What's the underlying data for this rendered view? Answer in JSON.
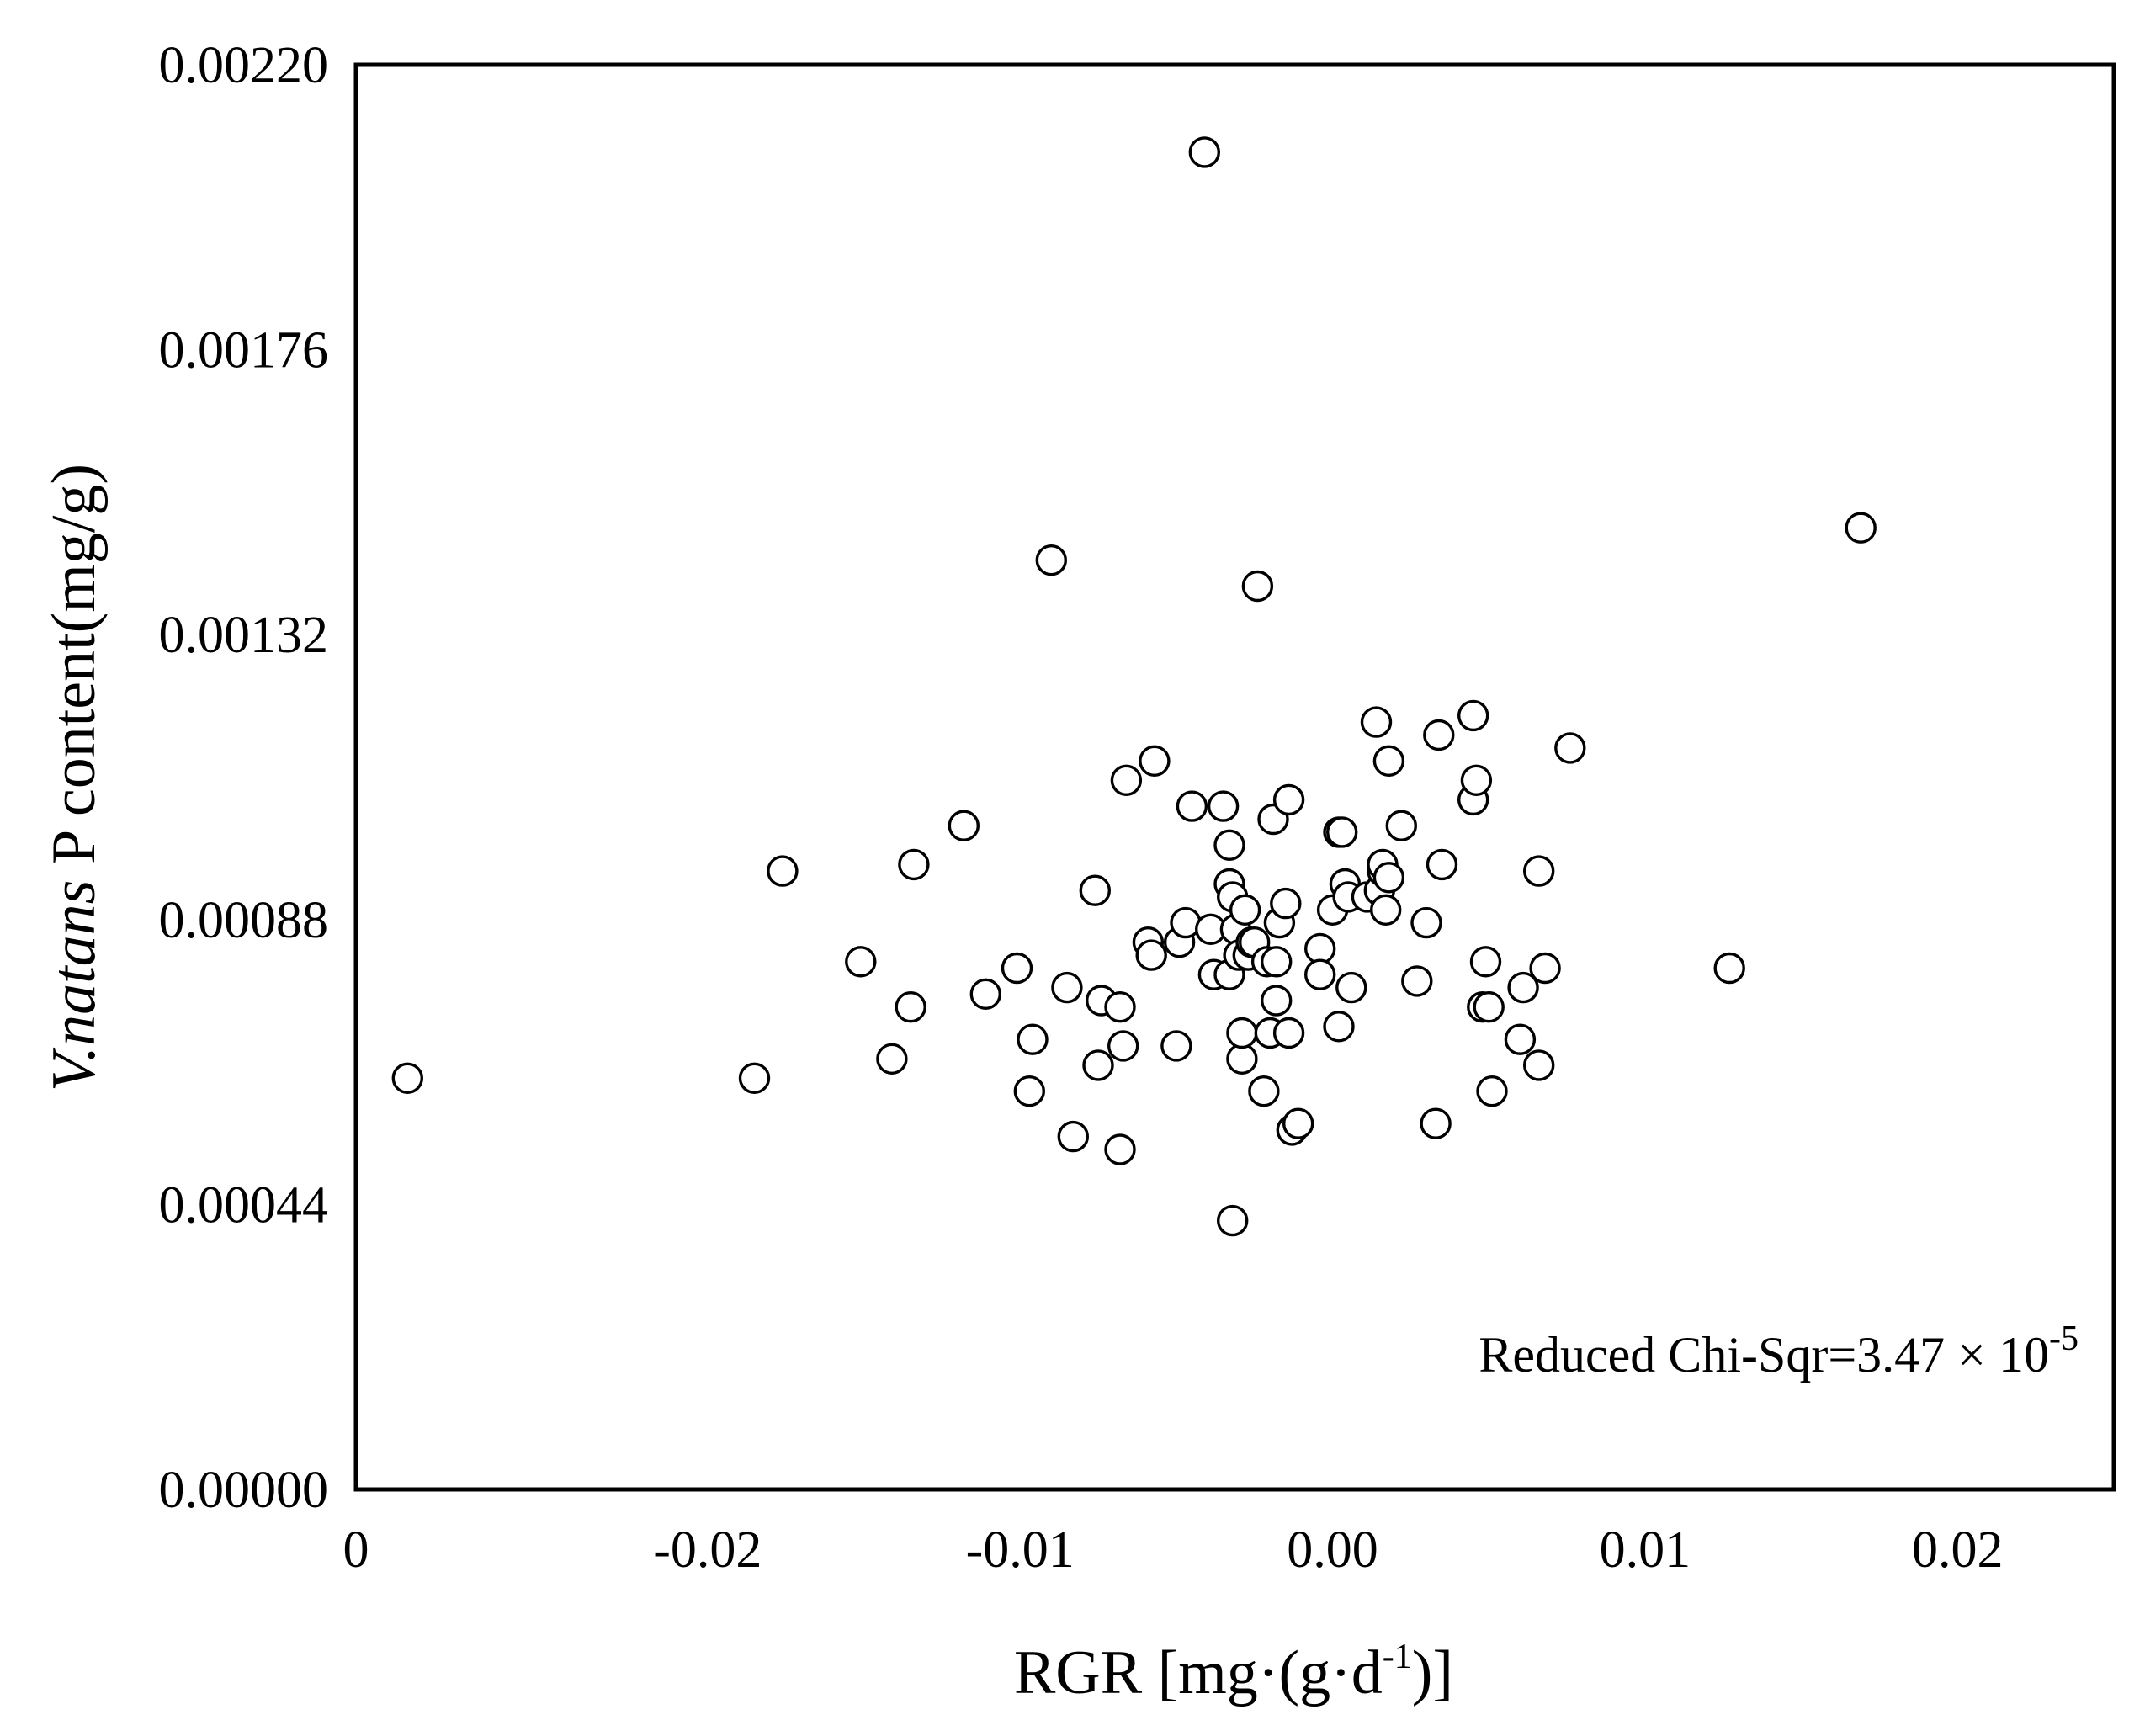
{
  "colors": {
    "background": "#ffffff",
    "ink": "#000000",
    "marker_fill": "#ffffff"
  },
  "chart_data": {
    "type": "scatter",
    "title": "",
    "xlabel": "RGR [mg·(g·d-1)]",
    "xlabel_parts": {
      "main": "RGR [mg·(g·d",
      "superscript": "-1",
      "tail": ")]"
    },
    "ylabel": "V.natans P content(mg/g)",
    "ylabel_parts": {
      "italic": "V.natans",
      "rest": " P content(mg/g)"
    },
    "xlim": [
      -0.03125,
      0.025
    ],
    "ylim": [
      0,
      0.0022
    ],
    "x_ticks": [
      {
        "value": -0.03125,
        "label": "0"
      },
      {
        "value": -0.02,
        "label": "-0.02"
      },
      {
        "value": -0.01,
        "label": "-0.01"
      },
      {
        "value": 0.0,
        "label": "0.00"
      },
      {
        "value": 0.01,
        "label": "0.01"
      },
      {
        "value": 0.02,
        "label": "0.02"
      }
    ],
    "y_ticks": [
      {
        "value": 0.0,
        "label": "0.00000"
      },
      {
        "value": 0.00044,
        "label": "0.00044"
      },
      {
        "value": 0.00088,
        "label": "0.00088"
      },
      {
        "value": 0.00132,
        "label": "0.00132"
      },
      {
        "value": 0.00176,
        "label": "0.00176"
      },
      {
        "value": 0.0022,
        "label": "0.00220"
      }
    ],
    "grid": false,
    "legend": "none",
    "annotation": {
      "text": "Reduced Chi-Sqr=3.47 × 10",
      "superscript": "-5",
      "position": "bottom-right"
    },
    "series": [
      {
        "name": "V.natans P content",
        "marker": "open-circle",
        "x": [
          -0.0296,
          -0.0185,
          -0.0176,
          -0.0151,
          -0.0141,
          -0.0134,
          -0.0135,
          -0.0118,
          -0.0111,
          -0.0101,
          -0.0097,
          -0.0096,
          -0.009,
          -0.0085,
          -0.0083,
          -0.0076,
          -0.0075,
          -0.0074,
          -0.0068,
          -0.0068,
          -0.0067,
          -0.0066,
          -0.0059,
          -0.0058,
          -0.0057,
          -0.005,
          -0.0049,
          -0.0047,
          -0.0045,
          -0.0041,
          -0.0039,
          -0.0038,
          -0.0035,
          -0.0033,
          -0.0033,
          -0.0033,
          -0.0032,
          -0.0032,
          -0.0031,
          -0.003,
          -0.0029,
          -0.0029,
          -0.0028,
          -0.0027,
          -0.0026,
          -0.0025,
          -0.0024,
          -0.0022,
          -0.0021,
          -0.002,
          -0.0019,
          -0.0018,
          -0.0018,
          -0.0017,
          -0.0015,
          -0.0014,
          -0.0014,
          -0.0013,
          -0.0011,
          -0.0004,
          -0.0004,
          0.0,
          0.0002,
          0.0002,
          0.0003,
          0.0004,
          0.0005,
          0.0006,
          0.0011,
          0.0014,
          0.0015,
          0.0016,
          0.0016,
          0.0017,
          0.0018,
          0.0018,
          0.0022,
          0.0027,
          0.003,
          0.0033,
          0.0034,
          0.0035,
          0.0045,
          0.0045,
          0.0046,
          0.0048,
          0.0049,
          0.005,
          0.0051,
          0.006,
          0.0061,
          0.0066,
          0.0066,
          0.0068,
          0.0076,
          0.0127,
          0.0169
        ],
        "y": [
          0.000635,
          0.000635,
          0.000955,
          0.000815,
          0.000665,
          0.000965,
          0.000745,
          0.001025,
          0.000765,
          0.000805,
          0.000615,
          0.000695,
          0.001435,
          0.000775,
          0.000545,
          0.000925,
          0.000655,
          0.000755,
          0.000525,
          0.000745,
          0.000685,
          0.001095,
          0.000845,
          0.000825,
          0.001125,
          0.000685,
          0.000845,
          0.000875,
          0.001055,
          0.002065,
          0.000865,
          0.000795,
          0.001055,
          0.000995,
          0.000935,
          0.000795,
          0.000915,
          0.000415,
          0.000865,
          0.000825,
          0.000665,
          0.000705,
          0.000895,
          0.000825,
          0.000845,
          0.000845,
          0.001395,
          0.000615,
          0.000815,
          0.000705,
          0.001035,
          0.000755,
          0.000815,
          0.000875,
          0.000905,
          0.001065,
          0.000705,
          0.000555,
          0.000565,
          0.000835,
          0.000795,
          0.000895,
          0.001015,
          0.000715,
          0.001015,
          0.000935,
          0.000915,
          0.000775,
          0.000915,
          0.001185,
          0.000925,
          0.000955,
          0.000965,
          0.000895,
          0.001125,
          0.000945,
          0.001025,
          0.000785,
          0.000875,
          0.000565,
          0.001165,
          0.000965,
          0.001065,
          0.001195,
          0.001095,
          0.000745,
          0.000815,
          0.000745,
          0.000615,
          0.000695,
          0.000775,
          0.000655,
          0.000955,
          0.000805,
          0.001145,
          0.000805,
          0.001485
        ]
      }
    ]
  }
}
